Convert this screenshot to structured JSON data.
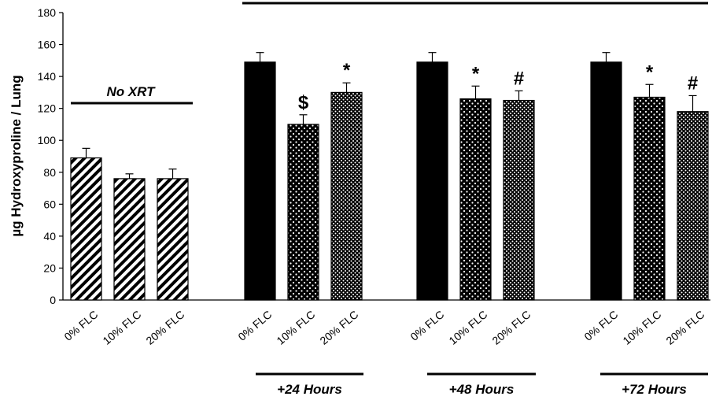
{
  "chart_data": {
    "type": "bar",
    "ylabel": "µg Hydroxyproline / Lung",
    "ylim": [
      0,
      180
    ],
    "yticks": [
      0,
      20,
      40,
      60,
      80,
      100,
      120,
      140,
      160,
      180
    ],
    "grid": false,
    "categories": [
      "0% FLC",
      "10% FLC",
      "20% FLC",
      "0% FLC",
      "10% FLC",
      "20% FLC",
      "0% FLC",
      "10% FLC",
      "20% FLC",
      "0% FLC",
      "10% FLC",
      "20% FLC"
    ],
    "groups": [
      {
        "label": "No XRT",
        "bars": [
          {
            "category": "0% FLC",
            "value": 89,
            "error": 6,
            "pattern": "hatch",
            "annotation": ""
          },
          {
            "category": "10% FLC",
            "value": 76,
            "error": 3,
            "pattern": "hatch",
            "annotation": ""
          },
          {
            "category": "20% FLC",
            "value": 76,
            "error": 6,
            "pattern": "hatch",
            "annotation": ""
          }
        ]
      },
      {
        "label": "+24 Hours",
        "bars": [
          {
            "category": "0% FLC",
            "value": 149,
            "error": 6,
            "pattern": "solid",
            "annotation": ""
          },
          {
            "category": "10% FLC",
            "value": 110,
            "error": 6,
            "pattern": "dots-sparse",
            "annotation": "$"
          },
          {
            "category": "20% FLC",
            "value": 130,
            "error": 6,
            "pattern": "dots-dense",
            "annotation": "*"
          }
        ]
      },
      {
        "label": "+48 Hours",
        "bars": [
          {
            "category": "0% FLC",
            "value": 149,
            "error": 6,
            "pattern": "solid",
            "annotation": ""
          },
          {
            "category": "10% FLC",
            "value": 126,
            "error": 8,
            "pattern": "dots-sparse",
            "annotation": "*"
          },
          {
            "category": "20% FLC",
            "value": 125,
            "error": 6,
            "pattern": "dots-dense",
            "annotation": "#"
          }
        ]
      },
      {
        "label": "+72 Hours",
        "bars": [
          {
            "category": "0% FLC",
            "value": 149,
            "error": 6,
            "pattern": "solid",
            "annotation": ""
          },
          {
            "category": "10% FLC",
            "value": 127,
            "error": 8,
            "pattern": "dots-sparse",
            "annotation": "*"
          },
          {
            "category": "20% FLC",
            "value": 118,
            "error": 10,
            "pattern": "dots-dense",
            "annotation": "#"
          }
        ]
      }
    ],
    "colors": {
      "bar_solid": "#000000",
      "bar_pattern_fg": "#000000",
      "bar_pattern_bg": "#ffffff"
    }
  }
}
